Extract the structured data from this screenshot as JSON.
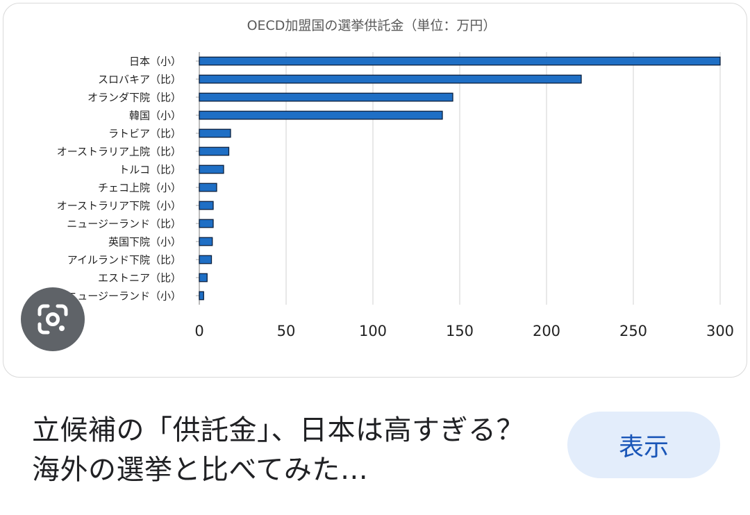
{
  "chart_data": {
    "type": "bar",
    "orientation": "horizontal",
    "title": "OECD加盟国の選挙供託金（単位：万円）",
    "categories": [
      "日本（小）",
      "スロバキア（比）",
      "オランダ下院（比）",
      "韓国（小）",
      "ラトビア（比）",
      "オーストラリア上院（比）",
      "トルコ（比）",
      "チェコ上院（小）",
      "オーストラリア下院（小）",
      "ニュージーランド（比）",
      "英国下院（小）",
      "アイルランド下院（比）",
      "エストニア（比）",
      "ニュージーランド（小）"
    ],
    "values": [
      300,
      220,
      146,
      140,
      18,
      17,
      14,
      10,
      8,
      8,
      7.5,
      7,
      4.5,
      2.5
    ],
    "xlim": [
      0,
      300
    ],
    "xticks": [
      "0",
      "50",
      "100",
      "150",
      "200",
      "250",
      "300"
    ],
    "xlabel": "",
    "ylabel": "",
    "grid": true,
    "legend": "none",
    "bar_color": "#1f6fc5",
    "bar_edge_color": "#0a1f3d"
  },
  "ui": {
    "lens_icon": "google-lens-icon",
    "caption": "立候補の「供託金」、日本は高すぎる？ 海外の選挙と比べてみた…",
    "show_button_label": "表示"
  }
}
